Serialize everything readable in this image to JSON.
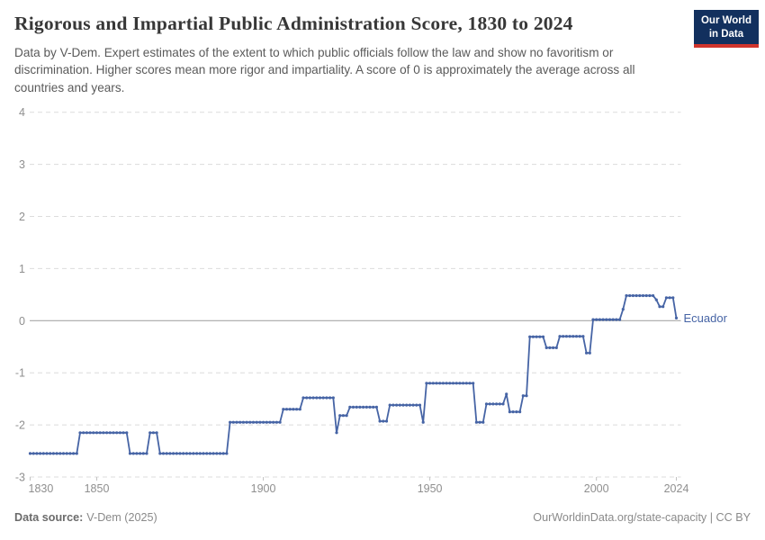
{
  "header": {
    "title": "Rigorous and Impartial Public Administration Score, 1830 to 2024",
    "subtitle": "Data by V-Dem. Expert estimates of the extent to which public officials follow the law and show no favoritism or discrimination. Higher scores mean more rigor and impartiality. A score of 0 is approximately the average across all countries and years.",
    "logo": {
      "line1": "Our World",
      "line2": "in Data"
    }
  },
  "colors": {
    "series_blue": "#4664a5",
    "logo_background": "#12305e",
    "logo_accent": "#d0342c",
    "gridline": "#dcdcdc",
    "zero_line": "#a8a8a8",
    "tick_label": "#8f8f8f"
  },
  "chart_data": {
    "type": "line",
    "title": "Rigorous and Impartial Public Administration Score, 1830 to 2024",
    "xlabel": "",
    "ylabel": "",
    "x": {
      "min": 1830,
      "max": 2024,
      "ticks": [
        1830,
        1850,
        1900,
        1950,
        2000,
        2024
      ]
    },
    "y": {
      "min": -3,
      "max": 4,
      "ticks": [
        4,
        3,
        2,
        1,
        0,
        -1,
        -2,
        -3
      ],
      "zero_line_solid": true
    },
    "grid": true,
    "marker": "circle",
    "legend_position": "end-of-line",
    "runs_format": "[start_year, end_year_inclusive, value] — one data point per year",
    "series": [
      {
        "name": "Ecuador",
        "color": "#4664a5",
        "runs": [
          [
            1830,
            1844,
            -2.55
          ],
          [
            1845,
            1859,
            -2.15
          ],
          [
            1860,
            1865,
            -2.55
          ],
          [
            1866,
            1868,
            -2.15
          ],
          [
            1869,
            1889,
            -2.55
          ],
          [
            1890,
            1905,
            -1.95
          ],
          [
            1906,
            1911,
            -1.7
          ],
          [
            1912,
            1921,
            -1.48
          ],
          [
            1922,
            1922,
            -2.15
          ],
          [
            1923,
            1925,
            -1.82
          ],
          [
            1926,
            1934,
            -1.66
          ],
          [
            1935,
            1937,
            -1.93
          ],
          [
            1938,
            1947,
            -1.62
          ],
          [
            1948,
            1948,
            -1.95
          ],
          [
            1949,
            1963,
            -1.2
          ],
          [
            1964,
            1966,
            -1.95
          ],
          [
            1967,
            1972,
            -1.6
          ],
          [
            1973,
            1973,
            -1.41
          ],
          [
            1974,
            1977,
            -1.75
          ],
          [
            1978,
            1979,
            -1.44
          ],
          [
            1980,
            1984,
            -0.31
          ],
          [
            1985,
            1988,
            -0.52
          ],
          [
            1989,
            1996,
            -0.3
          ],
          [
            1997,
            1998,
            -0.62
          ],
          [
            1999,
            2007,
            0.02
          ],
          [
            2008,
            2008,
            0.22
          ],
          [
            2009,
            2017,
            0.48
          ],
          [
            2018,
            2018,
            0.4
          ],
          [
            2019,
            2020,
            0.27
          ],
          [
            2021,
            2023,
            0.44
          ],
          [
            2024,
            2024,
            0.05
          ]
        ]
      }
    ]
  },
  "footer": {
    "source_label": "Data source:",
    "source_name": "V-Dem (2025)",
    "right_text": "OurWorldinData.org/state-capacity | CC BY"
  }
}
